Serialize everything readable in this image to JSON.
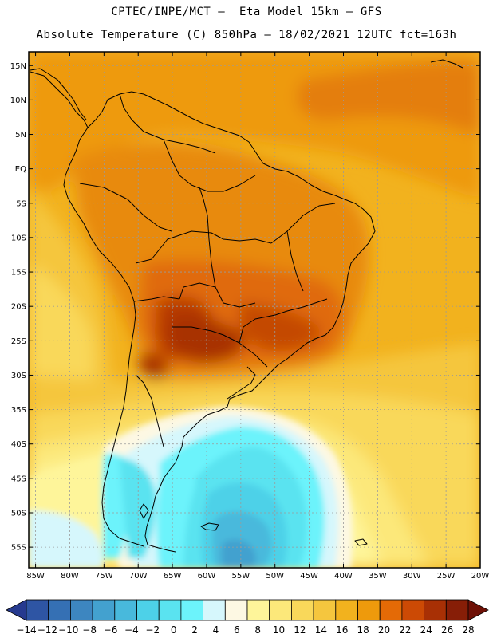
{
  "header": {
    "line1": "CPTEC/INPE/MCT –  Eta Model 15km – GFS",
    "line2": "Absolute Temperature (C) 850hPa – 18/02/2021 12UTC fct=163h"
  },
  "map": {
    "lat_labels": [
      "15N",
      "10N",
      "5N",
      "EQ",
      "5S",
      "10S",
      "15S",
      "20S",
      "25S",
      "30S",
      "35S",
      "40S",
      "45S",
      "50S",
      "55S"
    ],
    "lat_values": [
      15,
      10,
      5,
      0,
      -5,
      -10,
      -15,
      -20,
      -25,
      -30,
      -35,
      -40,
      -45,
      -50,
      -55
    ],
    "lon_labels": [
      "85W",
      "80W",
      "75W",
      "70W",
      "65W",
      "60W",
      "55W",
      "50W",
      "45W",
      "40W",
      "35W",
      "30W",
      "25W",
      "20W"
    ],
    "lon_values": [
      -85,
      -80,
      -75,
      -70,
      -65,
      -60,
      -55,
      -50,
      -45,
      -40,
      -35,
      -30,
      -25,
      -20
    ],
    "lat_range": [
      -58,
      17
    ],
    "lon_range": [
      -86,
      -20
    ]
  },
  "colorbar": {
    "labels": [
      "-14",
      "-12",
      "-10",
      "-8",
      "-6",
      "-4",
      "-2",
      "0",
      "2",
      "4",
      "6",
      "8",
      "10",
      "12",
      "14",
      "16",
      "18",
      "20",
      "22",
      "24",
      "26",
      "28"
    ],
    "colors": [
      "#263a8f",
      "#2e55a4",
      "#3570b4",
      "#3d86c0",
      "#43a1cf",
      "#48b9dc",
      "#4dd1e8",
      "#5ae3f0",
      "#6cf3fb",
      "#d6f7fc",
      "#fdf8e3",
      "#fef59a",
      "#fce87a",
      "#f9d85a",
      "#f5c63e",
      "#f2b21e",
      "#ee9a0c",
      "#e46a06",
      "#cc4a05",
      "#a83005",
      "#871e07",
      "#6e1006"
    ],
    "units": "C"
  }
}
